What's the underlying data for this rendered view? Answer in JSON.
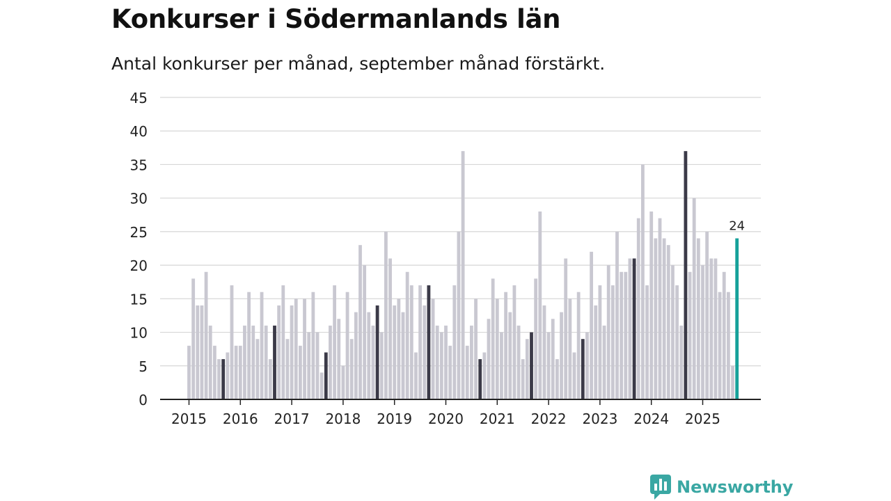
{
  "title": "Konkurser i Södermanlands län",
  "subtitle": "Antal konkurser per månad, september månad förstärkt.",
  "brand": {
    "name": "Newsworthy",
    "icon": "newsworthy-logo-icon"
  },
  "colors": {
    "bar": "#c9c8d1",
    "highlight": "#3b3a48",
    "latest": "#16a19a",
    "grid": "#d6d6d6",
    "axis": "#222222",
    "text": "#222222"
  },
  "chart_data": {
    "type": "bar",
    "title": "Konkurser i Södermanlands län",
    "subtitle": "Antal konkurser per månad, september månad förstärkt.",
    "xlabel": "",
    "ylabel": "",
    "ylim": [
      0,
      45
    ],
    "yticks": [
      0,
      5,
      10,
      15,
      20,
      25,
      30,
      35,
      40,
      45
    ],
    "year_labels": [
      "2015",
      "2016",
      "2017",
      "2018",
      "2019",
      "2020",
      "2021",
      "2022",
      "2023",
      "2024",
      "2025"
    ],
    "start": "2015-01",
    "highlight_month": "september",
    "annotation": {
      "label": "24",
      "month": "2025-09"
    },
    "grid": true,
    "values": [
      8,
      18,
      14,
      14,
      19,
      11,
      8,
      6,
      6,
      7,
      17,
      8,
      8,
      11,
      16,
      11,
      9,
      16,
      11,
      6,
      11,
      14,
      17,
      9,
      14,
      15,
      8,
      15,
      10,
      16,
      10,
      4,
      7,
      11,
      17,
      12,
      5,
      16,
      9,
      13,
      23,
      20,
      13,
      11,
      14,
      10,
      25,
      21,
      14,
      15,
      13,
      19,
      17,
      7,
      17,
      14,
      17,
      15,
      11,
      10,
      11,
      8,
      17,
      25,
      37,
      8,
      11,
      15,
      6,
      7,
      12,
      18,
      15,
      10,
      16,
      13,
      17,
      11,
      6,
      9,
      10,
      18,
      28,
      14,
      10,
      12,
      6,
      13,
      21,
      15,
      7,
      16,
      9,
      10,
      22,
      14,
      17,
      11,
      20,
      17,
      25,
      19,
      19,
      21,
      21,
      27,
      35,
      17,
      28,
      24,
      27,
      24,
      23,
      20,
      17,
      11,
      37,
      19,
      30,
      24,
      20,
      25,
      21,
      21,
      16,
      19,
      16,
      5,
      24
    ]
  }
}
